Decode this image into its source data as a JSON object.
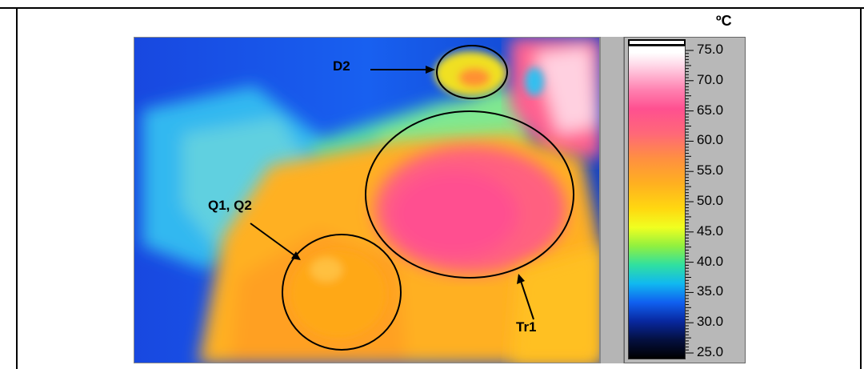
{
  "unit": "ºC",
  "labels": {
    "d2": "D2",
    "q1q2": "Q1, Q2",
    "tr1": "Tr1"
  },
  "scale": {
    "ticks": [
      "75.0",
      "70.0",
      "65.0",
      "60.0",
      "55.0",
      "50.0",
      "45.0",
      "40.0",
      "35.0",
      "30.0",
      "25.0"
    ]
  },
  "colors": {
    "cold": "#1040d8",
    "warm": "#ffb020",
    "hot": "#ff5090"
  }
}
